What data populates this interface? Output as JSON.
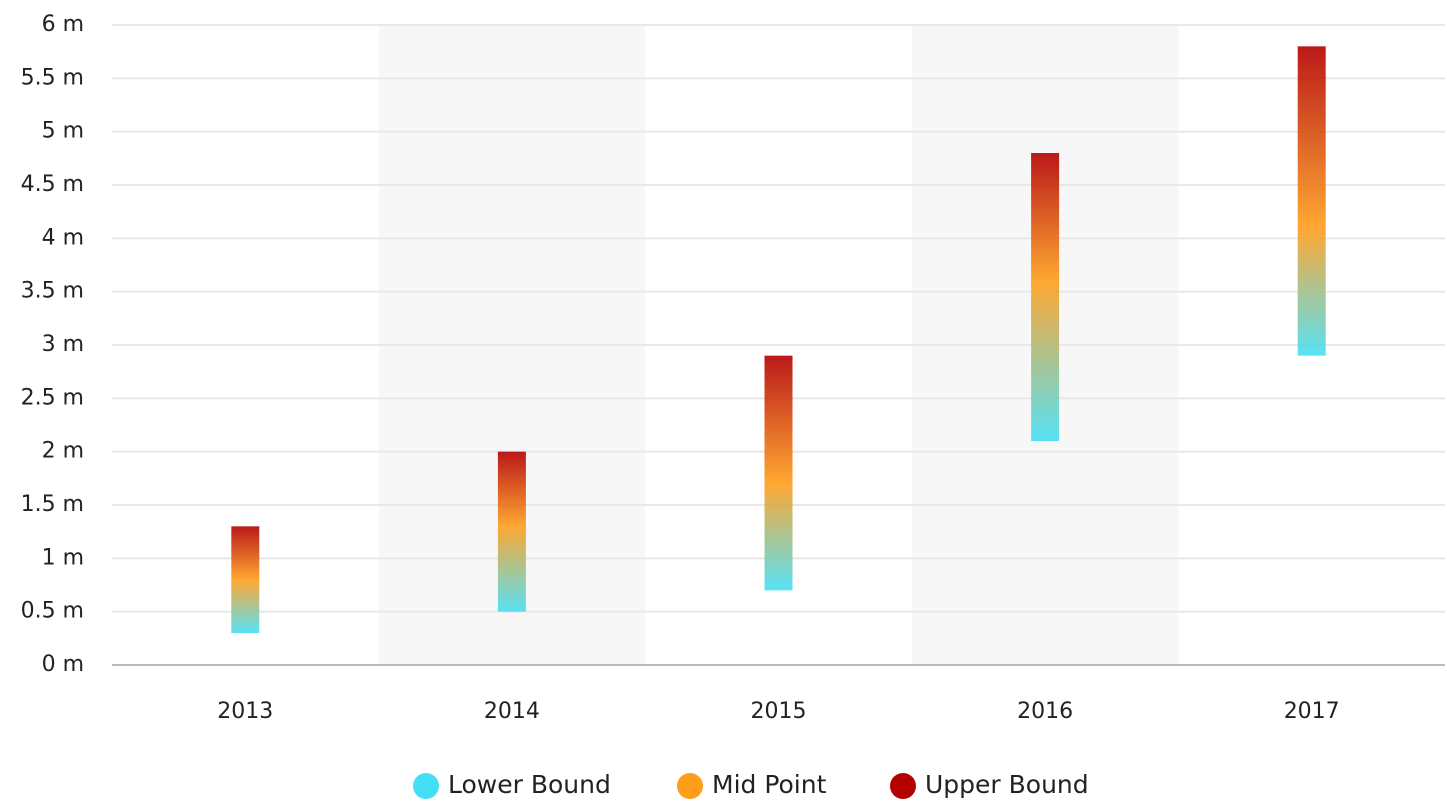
{
  "chart_data": {
    "type": "range-bar",
    "categories": [
      "2013",
      "2014",
      "2015",
      "2016",
      "2017"
    ],
    "series": [
      {
        "name": "Lower Bound",
        "color": "#45dff5",
        "values": [
          0.3,
          0.5,
          0.7,
          2.1,
          2.9
        ]
      },
      {
        "name": "Mid Point",
        "color": "#ff9e1b",
        "values": [
          0.8,
          1.3,
          1.7,
          3.6,
          4.1
        ]
      },
      {
        "name": "Upper Bound",
        "color": "#b30000",
        "values": [
          1.3,
          2.0,
          2.9,
          4.8,
          5.8
        ]
      }
    ],
    "ylim": [
      0,
      6
    ],
    "yticks": [
      {
        "value": 0,
        "label": "0 m"
      },
      {
        "value": 0.5,
        "label": "0.5 m"
      },
      {
        "value": 1,
        "label": "1 m"
      },
      {
        "value": 1.5,
        "label": "1.5 m"
      },
      {
        "value": 2,
        "label": "2 m"
      },
      {
        "value": 2.5,
        "label": "2.5 m"
      },
      {
        "value": 3,
        "label": "3 m"
      },
      {
        "value": 3.5,
        "label": "3.5 m"
      },
      {
        "value": 4,
        "label": "4 m"
      },
      {
        "value": 4.5,
        "label": "4.5 m"
      },
      {
        "value": 5,
        "label": "5 m"
      },
      {
        "value": 5.5,
        "label": "5.5 m"
      },
      {
        "value": 6,
        "label": "6 m"
      }
    ],
    "grid": true,
    "legend": "bottom"
  }
}
